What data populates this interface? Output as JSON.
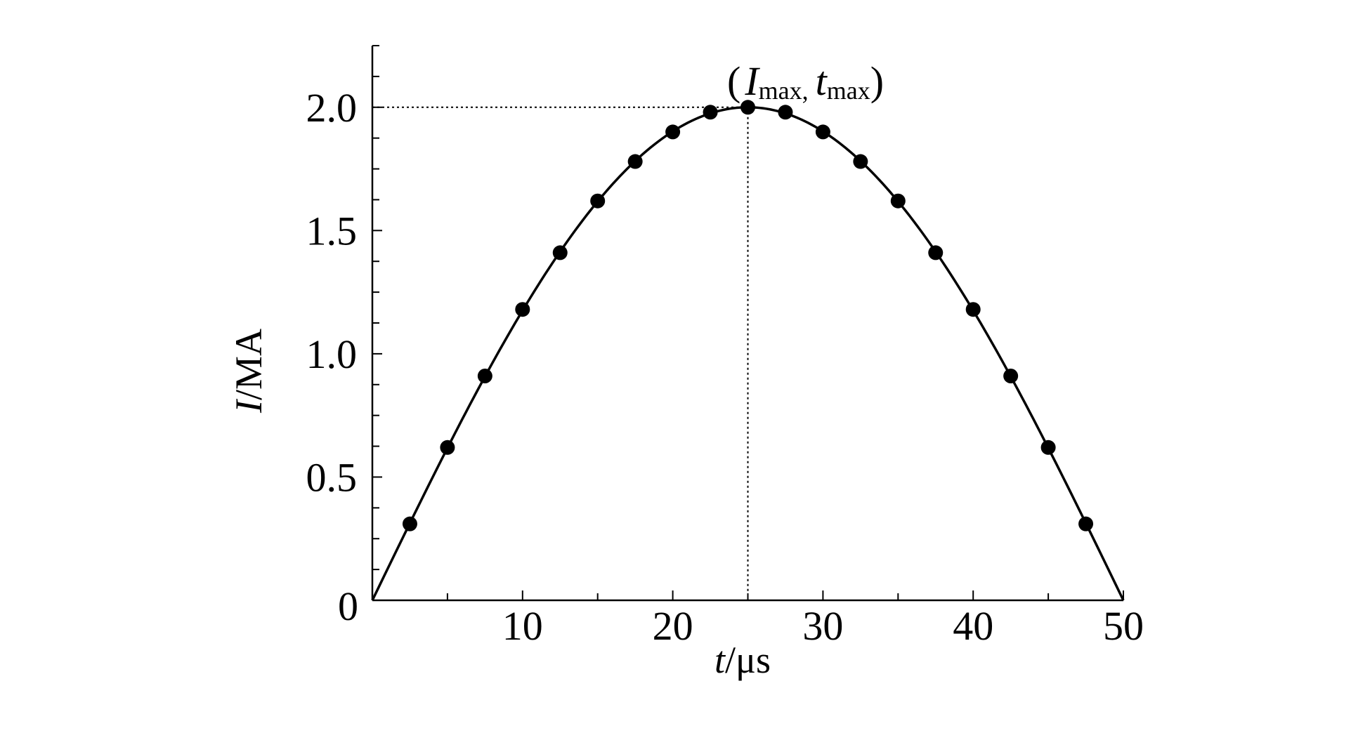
{
  "chart_data": {
    "type": "line",
    "title": "",
    "xlabel": {
      "var": "t",
      "unit": "/μs"
    },
    "ylabel": {
      "var": "I",
      "unit": "/MA"
    },
    "xlim": [
      0,
      50
    ],
    "ylim": [
      0,
      2.25
    ],
    "x_ticks": [
      {
        "value": 10,
        "label": "10"
      },
      {
        "value": 20,
        "label": "20"
      },
      {
        "value": 30,
        "label": "30"
      },
      {
        "value": 40,
        "label": "40"
      },
      {
        "value": 50,
        "label": "50"
      }
    ],
    "y_ticks": [
      {
        "value": 0,
        "label": "0"
      },
      {
        "value": 0.5,
        "label": "0.5"
      },
      {
        "value": 1.0,
        "label": "1.0"
      },
      {
        "value": 1.5,
        "label": "1.5"
      },
      {
        "value": 2.0,
        "label": "2.0"
      }
    ],
    "grid": false,
    "legend": "none",
    "series": [
      {
        "style": "solid line with filled circle markers",
        "color": "#000000",
        "curve": {
          "amplitude": 2.0,
          "period_half": 50,
          "form": "I = 2.0·sin(π t / 50)"
        },
        "points": [
          {
            "x": 2.5,
            "y": 0.31
          },
          {
            "x": 5.0,
            "y": 0.62
          },
          {
            "x": 7.5,
            "y": 0.91
          },
          {
            "x": 10.0,
            "y": 1.18
          },
          {
            "x": 12.5,
            "y": 1.41
          },
          {
            "x": 15.0,
            "y": 1.62
          },
          {
            "x": 17.5,
            "y": 1.78
          },
          {
            "x": 20.0,
            "y": 1.9
          },
          {
            "x": 22.5,
            "y": 1.98
          },
          {
            "x": 25.0,
            "y": 2.0
          },
          {
            "x": 27.5,
            "y": 1.98
          },
          {
            "x": 30.0,
            "y": 1.9
          },
          {
            "x": 32.5,
            "y": 1.78
          },
          {
            "x": 35.0,
            "y": 1.62
          },
          {
            "x": 37.5,
            "y": 1.41
          },
          {
            "x": 40.0,
            "y": 1.18
          },
          {
            "x": 42.5,
            "y": 0.91
          },
          {
            "x": 45.0,
            "y": 0.62
          },
          {
            "x": 47.5,
            "y": 0.31
          }
        ]
      }
    ],
    "annotations": [
      {
        "type": "peak-marker",
        "x": 25,
        "y": 2.0,
        "label": {
          "open": "(",
          "var1": "I",
          "sub1": "max,",
          "var2": "t",
          "sub2": "max",
          "close": ")"
        },
        "guide_lines": "dotted"
      }
    ]
  }
}
